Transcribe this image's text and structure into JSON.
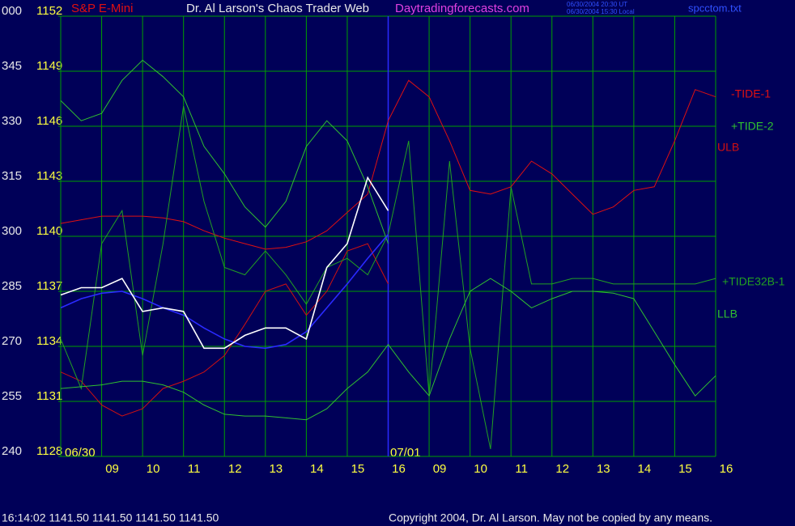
{
  "chart_data": {
    "type": "line",
    "instrument": "S&P E-Mini",
    "title": "Dr. Al Larson's Chaos Trader Web",
    "site": "Daytradingforecasts.com",
    "timestamps": [
      "06/30/2004 20:30 UT",
      "06/30/2004 15:30 Local"
    ],
    "file": "spcctom.txt",
    "day_labels": [
      "06/30",
      "07/01"
    ],
    "status": "16:14:02  1141.50 1141.50 1141.50 1141.50",
    "copyright": "Copyright 2004, Dr. Al Larson. May not be copied by any means.",
    "grid": true,
    "xlim": [
      8,
      24
    ],
    "xticks": [
      {
        "value": 9,
        "label": "09"
      },
      10,
      11,
      12,
      13,
      14,
      15,
      16,
      {
        "value": 17,
        "label": "09"
      },
      {
        "value": 18,
        "label": "10"
      },
      {
        "value": 19,
        "label": "11"
      },
      {
        "value": 20,
        "label": "12"
      },
      {
        "value": 21,
        "label": "13"
      },
      {
        "value": 22,
        "label": "14"
      },
      {
        "value": 23,
        "label": "15"
      },
      {
        "value": 24,
        "label": "16"
      }
    ],
    "ylim": [
      1128,
      1152
    ],
    "yticks": [
      1128,
      1131,
      1134,
      1137,
      1140,
      1143,
      1146,
      1149,
      1152
    ],
    "y2lim": [
      240,
      360
    ],
    "y2ticks": [
      240,
      255,
      270,
      285,
      300,
      315,
      330,
      345,
      {
        "value": 360,
        "label": "000"
      }
    ],
    "x": [
      8,
      8.5,
      9,
      9.5,
      10,
      10.5,
      11,
      11.5,
      12,
      12.5,
      13,
      13.5,
      14,
      14.5,
      15,
      15.5,
      16,
      16.5,
      17,
      17.5,
      18,
      18.5,
      19,
      19.5,
      20,
      20.5,
      21,
      21.5,
      22,
      22.5,
      23,
      23.5,
      24
    ],
    "series": [
      {
        "name": "-TIDE-1",
        "color": "#e01010",
        "values": [
          1140.7,
          1140.9,
          1141.1,
          1141.1,
          1141.1,
          1141.0,
          1140.8,
          1140.3,
          1139.9,
          1139.6,
          1139.3,
          1139.4,
          1139.7,
          1140.3,
          1141.3,
          1142.3,
          1146.3,
          1148.5,
          1147.6,
          1145.2,
          1142.5,
          1142.3,
          1142.7,
          1144.1,
          1143.4,
          1142.3,
          1141.2,
          1141.6,
          1142.5,
          1142.7,
          1145.2,
          1148.0,
          1147.6
        ]
      },
      {
        "name": "+TIDE-2",
        "color": "#30c030",
        "values": [
          1147.4,
          1146.3,
          1146.7,
          1148.5,
          1149.6,
          1148.7,
          1147.6,
          1144.9,
          1143.4,
          1141.6,
          1140.5,
          1141.9,
          1144.9,
          1146.3,
          1145.2,
          1142.7,
          1139.6,
          null,
          null,
          null,
          null,
          null,
          null,
          null,
          null,
          null,
          null,
          null,
          null,
          null,
          null,
          null,
          null
        ]
      },
      {
        "name": "ULB",
        "color": "#d01010",
        "values": [
          1132.6,
          1132.1,
          1130.8,
          1130.2,
          1130.6,
          1131.7,
          1132.1,
          1132.6,
          1133.5,
          1135.2,
          1137.0,
          1137.4,
          1135.7,
          1137.0,
          1139.2,
          1139.6,
          1137.4,
          null,
          null,
          null,
          null,
          null,
          null,
          null,
          null,
          null,
          null,
          null,
          null,
          null,
          null,
          null,
          null
        ]
      },
      {
        "name": "+TIDE32B-1",
        "color": "#22a022",
        "values": [
          1134.4,
          1131.7,
          1139.6,
          1141.4,
          1133.5,
          1139.6,
          1147.1,
          1141.9,
          1138.3,
          1137.9,
          1139.2,
          1137.9,
          1136.3,
          1138.3,
          1138.8,
          1137.9,
          1140.1,
          1145.2,
          1131.3,
          1144.1,
          1133.9,
          1128.4,
          1142.7,
          1137.4,
          1137.4,
          1137.7,
          1137.7,
          1137.4,
          1137.4,
          1137.4,
          1137.4,
          1137.4,
          1137.7
        ]
      },
      {
        "name": "LLB",
        "color": "#30c030",
        "values": [
          1131.7,
          1131.8,
          1131.9,
          1132.1,
          1132.1,
          1131.9,
          1131.5,
          1130.8,
          1130.3,
          1130.2,
          1130.2,
          1130.1,
          1130.0,
          1130.6,
          1131.7,
          1132.6,
          1134.1,
          1132.6,
          1131.3,
          1134.4,
          1137.0,
          1137.7,
          1137.0,
          1136.1,
          1136.6,
          1137.0,
          1137.0,
          1136.9,
          1136.6,
          1134.8,
          1133.0,
          1131.3,
          1132.4
        ]
      },
      {
        "color": "#2a2aff",
        "values": [
          1136.1,
          1136.6,
          1136.9,
          1137.0,
          1136.6,
          1136.1,
          1135.7,
          1135.0,
          1134.4,
          1134.0,
          1133.9,
          1134.1,
          1134.8,
          1136.1,
          1137.4,
          1138.8,
          1140.1,
          null,
          null,
          null,
          null,
          null,
          null,
          null,
          null,
          null,
          null,
          null,
          null,
          null,
          null,
          null,
          null
        ]
      },
      {
        "color": "#ffffff",
        "values": [
          1136.8,
          1137.2,
          1137.2,
          1137.7,
          1135.9,
          1136.1,
          1135.9,
          1133.9,
          1133.9,
          1134.6,
          1135.0,
          1135.0,
          1134.4,
          1138.3,
          1139.6,
          1143.2,
          1141.4,
          null,
          null,
          null,
          null,
          null,
          null,
          null,
          null,
          null,
          null,
          null,
          null,
          null,
          null,
          null,
          null
        ]
      }
    ]
  }
}
